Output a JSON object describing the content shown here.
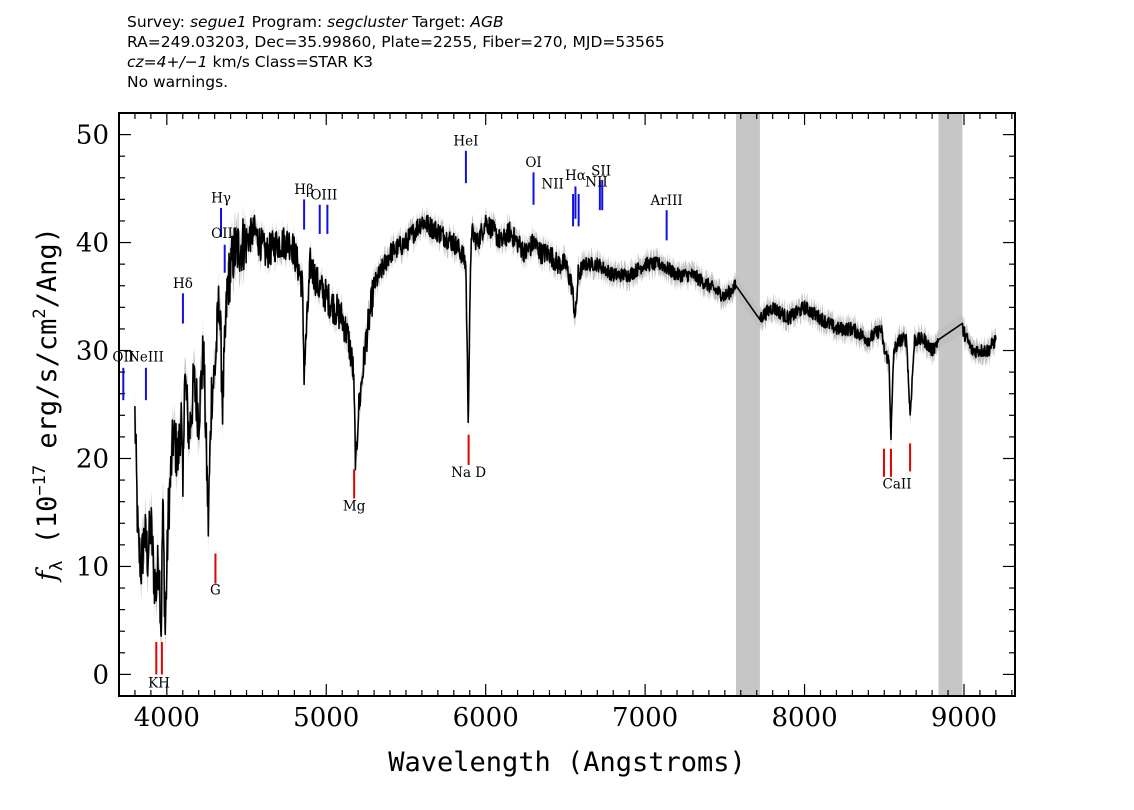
{
  "header": {
    "survey_label": "Survey:",
    "survey": "segue1",
    "program_label": "Program:",
    "program": "segcluster",
    "target_label": "Target:",
    "target": "AGB",
    "line2": "RA=249.03203, Dec=35.99860, Plate=2255, Fiber=270, MJD=53565",
    "cz": "cz=4+/−1",
    "cz_rest": " km/s Class=STAR K3",
    "warnings": "No warnings."
  },
  "chart_data": {
    "type": "line",
    "xlabel": "Wavelength (Angstroms)",
    "ylabel_prefix": "f",
    "ylabel_sub": "λ",
    "ylabel_paren_open": " (10",
    "ylabel_exp1": "−17",
    "ylabel_mid": " erg/s/cm",
    "ylabel_exp2": "2",
    "ylabel_end": "/Ang)",
    "xlim": [
      3700,
      9320
    ],
    "ylim": [
      -2,
      52
    ],
    "xticks": [
      4000,
      5000,
      6000,
      7000,
      8000,
      9000
    ],
    "xtick_labels": [
      "4000",
      "5000",
      "6000",
      "7000",
      "8000",
      "9000"
    ],
    "yticks": [
      0,
      10,
      20,
      30,
      40,
      50
    ],
    "ytick_labels": [
      "0",
      "10",
      "20",
      "30",
      "40",
      "50"
    ],
    "masked_regions": [
      [
        7570,
        7720
      ],
      [
        8840,
        8990
      ]
    ],
    "spectrum": {
      "x": [
        3800,
        3820,
        3840,
        3860,
        3880,
        3900,
        3920,
        3935,
        3950,
        3965,
        3975,
        3990,
        4010,
        4040,
        4070,
        4090,
        4101,
        4110,
        4140,
        4170,
        4200,
        4230,
        4260,
        4280,
        4300,
        4330,
        4350,
        4380,
        4420,
        4480,
        4550,
        4620,
        4700,
        4780,
        4820,
        4850,
        4861,
        4900,
        4950,
        5000,
        5050,
        5100,
        5140,
        5170,
        5185,
        5200,
        5250,
        5300,
        5400,
        5500,
        5600,
        5700,
        5800,
        5850,
        5875,
        5890,
        5910,
        5950,
        6000,
        6050,
        6100,
        6150,
        6200,
        6250,
        6300,
        6350,
        6400,
        6450,
        6500,
        6540,
        6563,
        6580,
        6620,
        6700,
        6800,
        6900,
        7000,
        7100,
        7200,
        7300,
        7400,
        7500,
        7570,
        7720,
        7800,
        7900,
        8000,
        8100,
        8200,
        8300,
        8400,
        8480,
        8500,
        8530,
        8542,
        8560,
        8600,
        8640,
        8662,
        8690,
        8750,
        8800,
        8840,
        8990,
        9050,
        9100,
        9150,
        9200
      ],
      "y": [
        24,
        12,
        10,
        13,
        11,
        14,
        9,
        8,
        11,
        4,
        16,
        4,
        15,
        22,
        20,
        24,
        16,
        28,
        22,
        27,
        24,
        30,
        14,
        26,
        28,
        35,
        25,
        36,
        39,
        40,
        41,
        39,
        40,
        40,
        38,
        36,
        28,
        38,
        36,
        35,
        34,
        33,
        31,
        28,
        19,
        24,
        31,
        36,
        39,
        40,
        42,
        41,
        40,
        39,
        38,
        24,
        41,
        40,
        42,
        41,
        40,
        41,
        40,
        39,
        40,
        39,
        39,
        38,
        38,
        36,
        33,
        37,
        38,
        38,
        37,
        37,
        38,
        38,
        37,
        37,
        36,
        35,
        36,
        33,
        34,
        33,
        34,
        33,
        32,
        32,
        31,
        32,
        30,
        29,
        22,
        30,
        31,
        31,
        24,
        31,
        31,
        30,
        31,
        32,
        30,
        30,
        30,
        31
      ]
    },
    "emission_lines": [
      {
        "label": "OII",
        "x": 3727,
        "y1": 25.4,
        "y2": 28.4
      },
      {
        "label": "NeIII",
        "x": 3869,
        "y1": 25.4,
        "y2": 28.4
      },
      {
        "label": "Hδ",
        "x": 4101,
        "y1": 32.5,
        "y2": 35.3
      },
      {
        "label": "Hγ",
        "x": 4340,
        "y1": 40.5,
        "y2": 43.2
      },
      {
        "label": "OIII",
        "x": 4363,
        "y1": 37.2,
        "y2": 39.8
      },
      {
        "label": "Hβ",
        "x": 4861,
        "y1": 41.2,
        "y2": 44.0
      },
      {
        "label": "OIII",
        "x": 4959,
        "y1": 40.8,
        "y2": 43.5
      },
      {
        "label": "OIII",
        "x": 5007,
        "y1": 40.8,
        "y2": 43.5
      },
      {
        "label": "HeI",
        "x": 5876,
        "y1": 45.5,
        "y2": 48.5
      },
      {
        "label": "OI",
        "x": 6300,
        "y1": 43.5,
        "y2": 46.5
      },
      {
        "label": "NII",
        "x": 6548,
        "y1": 41.5,
        "y2": 44.5
      },
      {
        "label": "Hα",
        "x": 6563,
        "y1": 42.2,
        "y2": 45.2
      },
      {
        "label": "NII",
        "x": 6583,
        "y1": 41.5,
        "y2": 44.5
      },
      {
        "label": "SII",
        "x": 6716,
        "y1": 43.0,
        "y2": 45.8
      },
      {
        "label": "SII",
        "x": 6731,
        "y1": 43.0,
        "y2": 45.8
      },
      {
        "label": "ArIII",
        "x": 7135,
        "y1": 40.2,
        "y2": 43.0
      }
    ],
    "emission_labels": [
      {
        "text": "OII",
        "x": 3727,
        "y": 29.0
      },
      {
        "text": "NeIII",
        "x": 3869,
        "y": 29.0
      },
      {
        "text": "Hδ",
        "x": 4101,
        "y": 35.8
      },
      {
        "text": "Hγ",
        "x": 4340,
        "y": 43.7
      },
      {
        "text": "OIII",
        "x": 4363,
        "y": 40.4
      },
      {
        "text": "Hβ",
        "x": 4861,
        "y": 44.5
      },
      {
        "text": "OIII",
        "x": 4985,
        "y": 44.0
      },
      {
        "text": "HeI",
        "x": 5876,
        "y": 49.0
      },
      {
        "text": "OI",
        "x": 6300,
        "y": 47.0
      },
      {
        "text": "NII",
        "x": 6420,
        "y": 45.0
      },
      {
        "text": "Hα",
        "x": 6563,
        "y": 45.8
      },
      {
        "text": "SII",
        "x": 6724,
        "y": 46.2
      },
      {
        "text": "NII",
        "x": 6695,
        "y": 45.2
      },
      {
        "text": "ArIII",
        "x": 7135,
        "y": 43.5
      }
    ],
    "absorption_lines": [
      {
        "label": "K",
        "x": 3934,
        "y1": 0,
        "y2": 3
      },
      {
        "label": "H",
        "x": 3969,
        "y1": 0,
        "y2": 3
      },
      {
        "label": "G",
        "x": 4305,
        "y1": 8.4,
        "y2": 11.2
      },
      {
        "label": "Mg",
        "x": 5175,
        "y1": 16.3,
        "y2": 19.0
      },
      {
        "label": "Na D",
        "x": 5893,
        "y1": 19.4,
        "y2": 22.2
      },
      {
        "label": "CaII",
        "x": 8498,
        "y1": 18.3,
        "y2": 20.9
      },
      {
        "label": "CaII",
        "x": 8542,
        "y1": 18.3,
        "y2": 20.9
      },
      {
        "label": "CaII",
        "x": 8662,
        "y1": 18.8,
        "y2": 21.4
      }
    ],
    "absorption_labels": [
      {
        "text": "KH",
        "x": 3951,
        "y": -1.2
      },
      {
        "text": "G",
        "x": 4305,
        "y": 7.4
      },
      {
        "text": "Mg",
        "x": 5175,
        "y": 15.2
      },
      {
        "text": "Na D",
        "x": 5893,
        "y": 18.3
      },
      {
        "text": "CaII",
        "x": 8580,
        "y": 17.2
      }
    ],
    "colors": {
      "spectrum": "#000000",
      "error_band": "#c0c0c0",
      "mask": "#c6c6c6",
      "emission": "#1010e0",
      "absorption": "#e00000"
    }
  }
}
